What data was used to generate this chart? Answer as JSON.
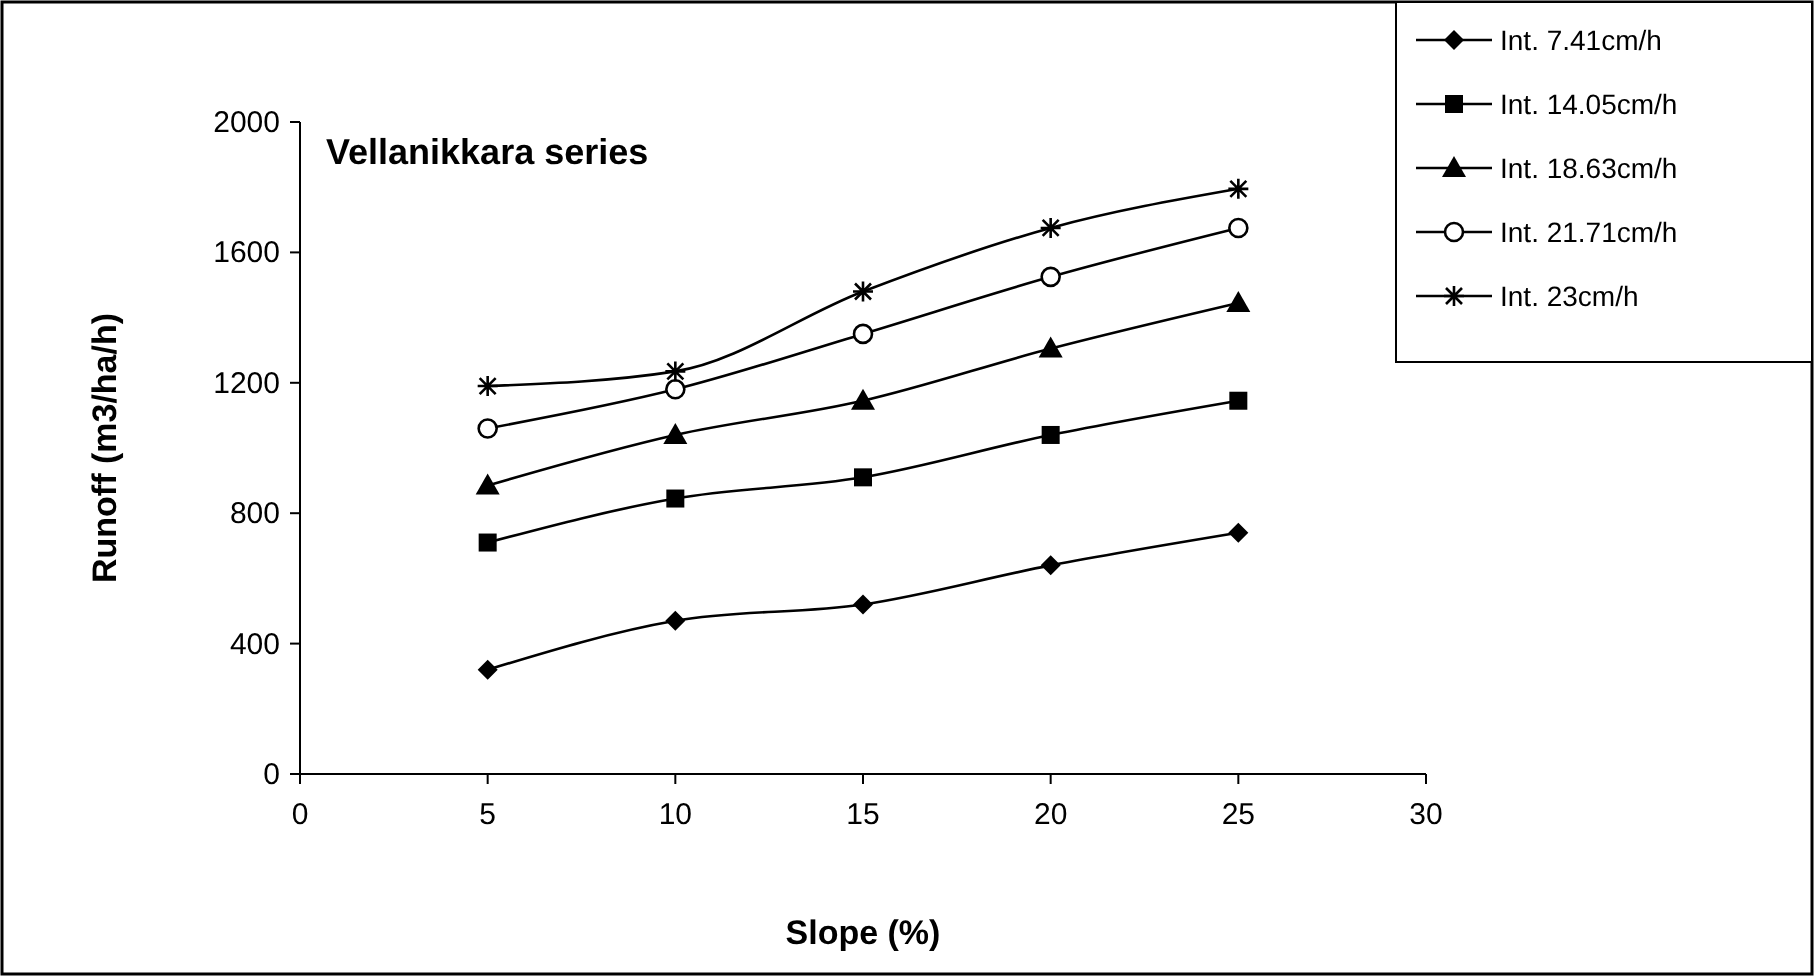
{
  "chart_data": {
    "type": "line",
    "title": "Vellanikkara series",
    "xlabel": "Slope (%)",
    "ylabel": "Runoff (m3/ha/h)",
    "x": [
      5,
      10,
      15,
      20,
      25
    ],
    "series": [
      {
        "name": "Int. 7.41cm/h",
        "color": "#000000",
        "marker": "diamond",
        "values": [
          320,
          470,
          520,
          640,
          740
        ]
      },
      {
        "name": "Int. 14.05cm/h",
        "color": "#000000",
        "marker": "square",
        "values": [
          710,
          845,
          910,
          1040,
          1145
        ]
      },
      {
        "name": "Int. 18.63cm/h",
        "color": "#000000",
        "marker": "triangle",
        "values": [
          885,
          1040,
          1145,
          1305,
          1445
        ]
      },
      {
        "name": "Int. 21.71cm/h",
        "color": "#000000",
        "marker": "circle",
        "values": [
          1060,
          1180,
          1350,
          1525,
          1675
        ]
      },
      {
        "name": "Int. 23cm/h",
        "color": "#000000",
        "marker": "cross",
        "values": [
          1190,
          1235,
          1480,
          1675,
          1795
        ]
      }
    ],
    "xlim": [
      0,
      30
    ],
    "xticks": [
      0,
      5,
      10,
      15,
      20,
      25,
      30
    ],
    "ylim": [
      0,
      2000
    ],
    "yticks": [
      0,
      400,
      800,
      1200,
      1600,
      2000
    ],
    "grid": false,
    "legend": "top right",
    "line_style": "solid"
  }
}
